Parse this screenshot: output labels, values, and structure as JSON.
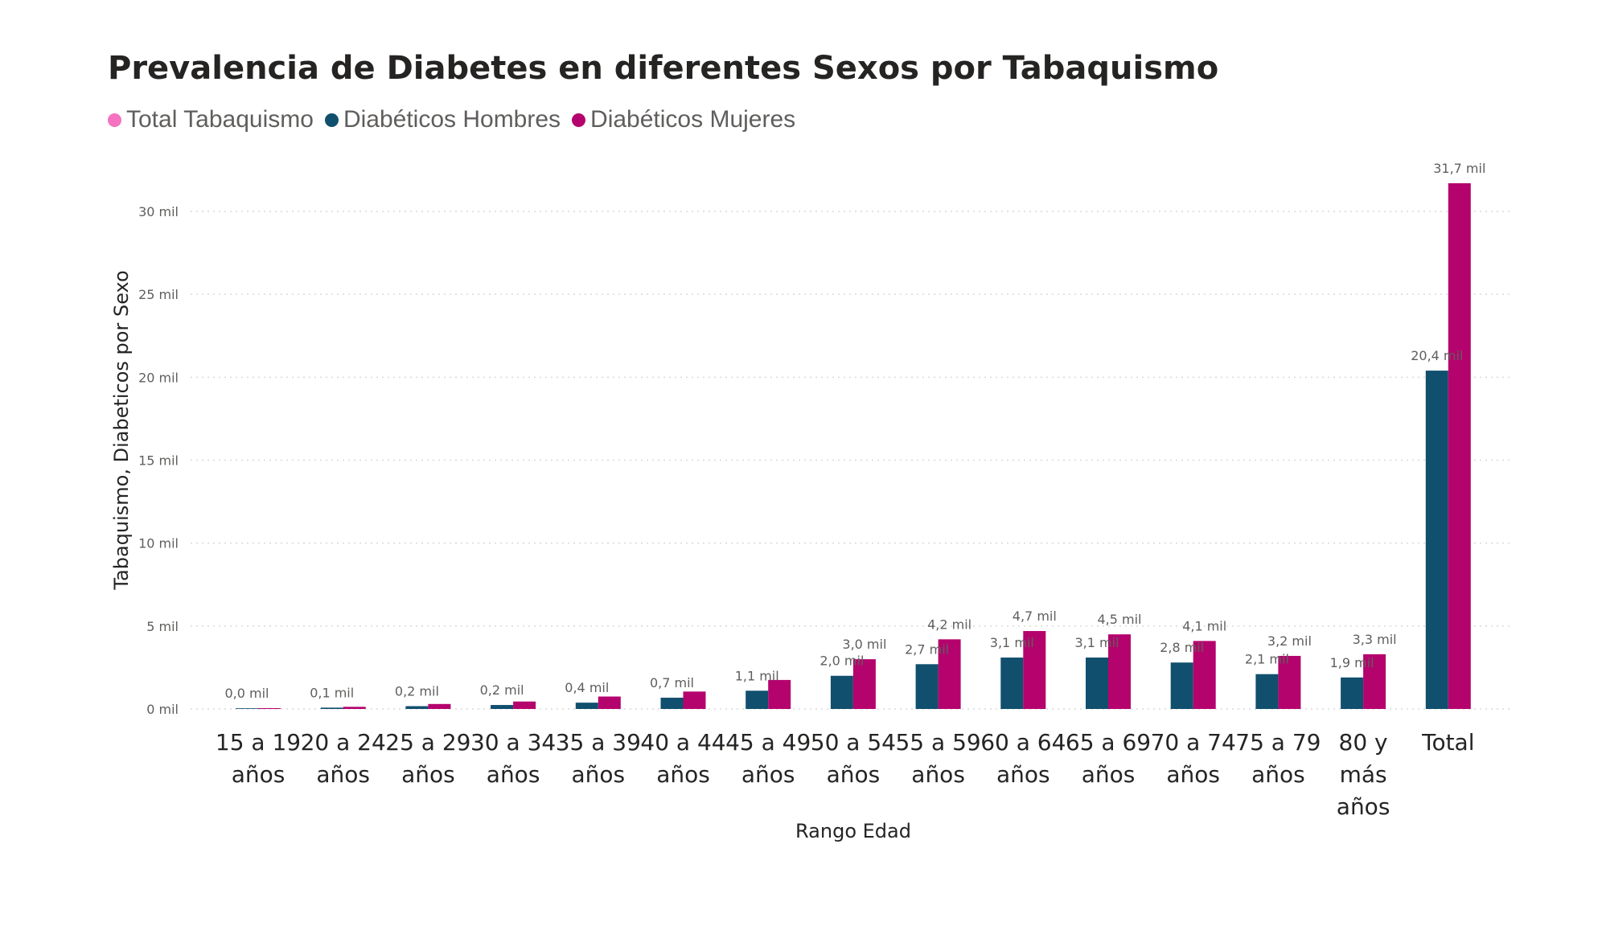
{
  "chart_data": {
    "type": "bar",
    "title": "Prevalencia de Diabetes en diferentes Sexos por Tabaquismo",
    "xlabel": "Rango Edad",
    "ylabel": "Tabaquismo, Diabeticos por Sexo",
    "categories": [
      [
        "15 a 19",
        "años"
      ],
      [
        "20 a 24",
        "años"
      ],
      [
        "25 a 29",
        "años"
      ],
      [
        "30 a 34",
        "años"
      ],
      [
        "35 a 39",
        "años"
      ],
      [
        "40 a 44",
        "años"
      ],
      [
        "45 a 49",
        "años"
      ],
      [
        "50 a 54",
        "años"
      ],
      [
        "55 a 59",
        "años"
      ],
      [
        "60 a 64",
        "años"
      ],
      [
        "65 a 69",
        "años"
      ],
      [
        "70 a 74",
        "años"
      ],
      [
        "75 a 79",
        "años"
      ],
      [
        "80 y",
        "más",
        "años"
      ],
      [
        "Total"
      ]
    ],
    "series": [
      {
        "name": "Total Tabaquismo",
        "color": "#f472c0",
        "values": [
          0,
          0,
          0,
          0,
          0,
          0,
          0,
          0,
          0,
          0,
          0,
          0,
          0,
          0,
          0
        ],
        "labels": []
      },
      {
        "name": "Diabéticos Hombres",
        "color": "#114f6e",
        "values": [
          0.04,
          0.08,
          0.17,
          0.24,
          0.38,
          0.68,
          1.1,
          2.0,
          2.7,
          3.1,
          3.1,
          2.8,
          2.1,
          1.9,
          20.4
        ],
        "labels": [
          "0,0 mil",
          "0,1 mil",
          "0,2 mil",
          "0,2 mil",
          "0,4 mil",
          "0,7 mil",
          "1,1 mil",
          "2,0 mil",
          "2,7 mil",
          "3,1 mil",
          "3,1 mil",
          "2,8 mil",
          "2,1 mil",
          "1,9 mil",
          "20,4 mil"
        ]
      },
      {
        "name": "Diabéticos Mujeres",
        "color": "#b5036e",
        "values": [
          0.05,
          0.13,
          0.3,
          0.45,
          0.75,
          1.05,
          1.75,
          3.0,
          4.2,
          4.7,
          4.5,
          4.1,
          3.2,
          3.3,
          31.7
        ],
        "labels": [
          "",
          "",
          "",
          "",
          "",
          "",
          "",
          "3,0 mil",
          "4,2 mil",
          "4,7 mil",
          "4,5 mil",
          "4,1 mil",
          "3,2 mil",
          "3,3 mil",
          "31,7 mil"
        ]
      }
    ],
    "ylim": [
      0,
      32
    ],
    "yticks": [
      {
        "value": 0,
        "label": "0 mil"
      },
      {
        "value": 5,
        "label": "5 mil"
      },
      {
        "value": 10,
        "label": "10 mil"
      },
      {
        "value": 15,
        "label": "15 mil"
      },
      {
        "value": 20,
        "label": "20 mil"
      },
      {
        "value": 25,
        "label": "25 mil"
      },
      {
        "value": 30,
        "label": "30 mil"
      }
    ],
    "grid": true,
    "legend": "top-left"
  }
}
